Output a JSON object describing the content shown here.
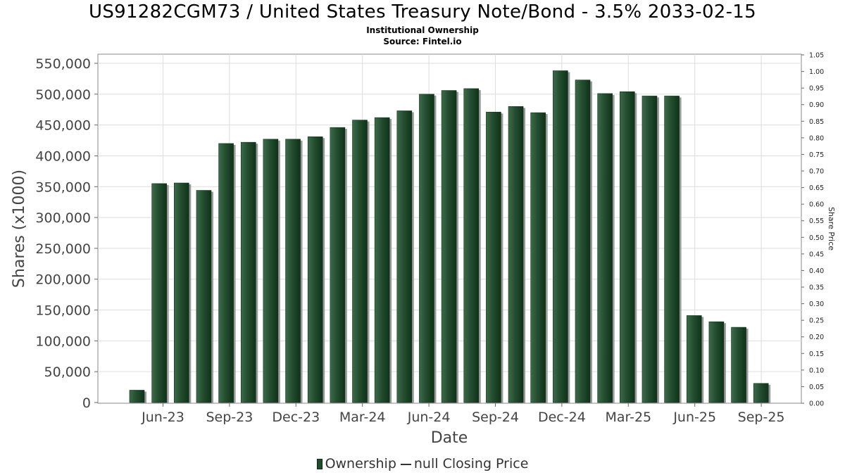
{
  "title": "US91282CGM73 / United States Treasury Note/Bond - 3.5% 2033-02-15",
  "subtitle": "Institutional Ownership",
  "source": "Source: Fintel.io",
  "legend": {
    "ownership": "Ownership",
    "price": "null Closing Price"
  },
  "chart_data": {
    "type": "bar",
    "title": "US91282CGM73 / United States Treasury Note/Bond - 3.5% 2033-02-15",
    "xlabel": "Date",
    "ylabel": "Shares (x1000)",
    "y2label": "Share Price",
    "ylim": [
      0,
      550000
    ],
    "y2lim": [
      0,
      1.05
    ],
    "grid": true,
    "legend_position": "bottom",
    "x_tick_labels": [
      "Jun-23",
      "Sep-23",
      "Dec-23",
      "Mar-24",
      "Jun-24",
      "Sep-24",
      "Dec-24",
      "Mar-25",
      "Jun-25",
      "Sep-25"
    ],
    "y_tick_labels": [
      "0",
      "50,000",
      "100,000",
      "150,000",
      "200,000",
      "250,000",
      "300,000",
      "350,000",
      "400,000",
      "450,000",
      "500,000",
      "550,000"
    ],
    "y2_tick_labels": [
      "0.00",
      "0.05",
      "0.10",
      "0.15",
      "0.20",
      "0.25",
      "0.30",
      "0.35",
      "0.40",
      "0.45",
      "0.50",
      "0.55",
      "0.60",
      "0.65",
      "0.70",
      "0.75",
      "0.80",
      "0.85",
      "0.90",
      "0.95",
      "1.00",
      "1.05"
    ],
    "series": [
      {
        "name": "Ownership",
        "values": [
          20000,
          355000,
          356000,
          344000,
          420000,
          422000,
          427000,
          427000,
          431000,
          446000,
          458000,
          462000,
          473000,
          500000,
          506000,
          509000,
          471000,
          480000,
          470000,
          538000,
          523000,
          501000,
          504000,
          497000,
          497000,
          141000,
          131000,
          122000,
          31000
        ]
      },
      {
        "name": "null Closing Price",
        "values": []
      }
    ],
    "colors": {
      "bar": "#2a5436",
      "bar_dark": "#0f3318",
      "shadow": "#9a9a9a",
      "grid": "#dddddd"
    }
  }
}
